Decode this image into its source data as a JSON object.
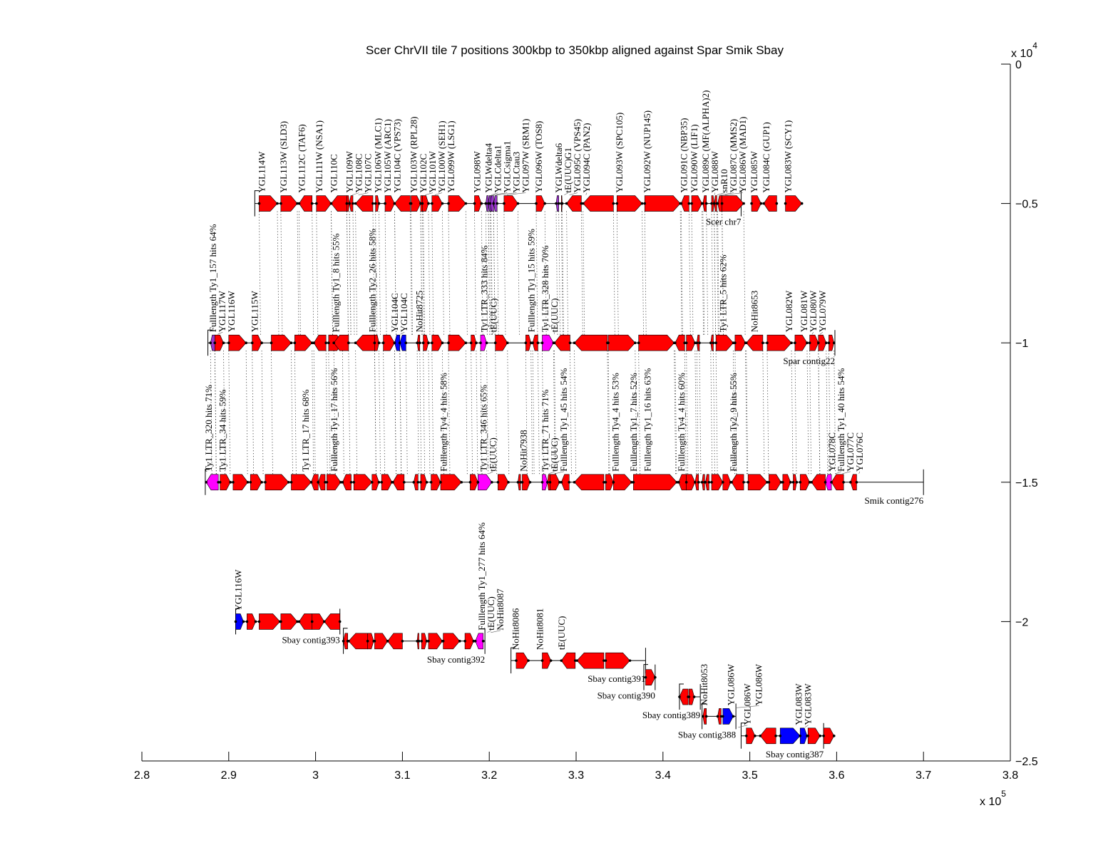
{
  "chart_data": {
    "type": "gene-alignment-map",
    "title": "Scer ChrVII tile 7 positions 300kbp to 350kbp aligned against Spar Smik Sbay",
    "xlabel": "",
    "ylabel": "",
    "xlim": [
      280000,
      380000
    ],
    "ylim": [
      -25000,
      0
    ],
    "x_ticks": [
      2.8,
      2.9,
      3.0,
      3.1,
      3.2,
      3.3,
      3.4,
      3.5,
      3.6,
      3.7,
      3.8
    ],
    "x_tick_labels": [
      "2.8",
      "2.9",
      "3",
      "3.1",
      "3.2",
      "3.3",
      "3.4",
      "3.5",
      "3.6",
      "3.7",
      "3.8"
    ],
    "x_multiplier": "x 10",
    "x_multiplier_exp": "5",
    "y_ticks": [
      0,
      -0.5,
      -1,
      -1.5,
      -2,
      -2.5
    ],
    "y_tick_labels": [
      "0",
      "−0.5",
      "−1",
      "−1.5",
      "−2",
      "−2.5"
    ],
    "y_multiplier": "x 10",
    "y_multiplier_exp": "4",
    "y_axis_side": "right",
    "grid": false,
    "colors": {
      "gene": "#ff0000",
      "transposon": "#ff00ff",
      "trna": "#9933cc",
      "inverted": "#0000ff",
      "other": "#00cc00"
    },
    "tracks": [
      {
        "name": "Scer chr7",
        "y": -5000,
        "range": [
          293000,
          349000
        ],
        "features": [
          {
            "s": 293500,
            "e": 295600,
            "dir": 1,
            "c": "gene",
            "label": "YGL114W"
          },
          {
            "s": 296000,
            "e": 297900,
            "dir": 1,
            "c": "gene",
            "label": "YGL113W (SLD3)"
          },
          {
            "s": 298100,
            "e": 299600,
            "dir": -1,
            "c": "gene",
            "label": "YGL112C (TAF6)"
          },
          {
            "s": 300100,
            "e": 301800,
            "dir": 1,
            "c": "gene",
            "label": "YGL111W (NSA1)"
          },
          {
            "s": 301800,
            "e": 303600,
            "dir": -1,
            "c": "gene",
            "label": "YGL110C"
          },
          {
            "s": 303600,
            "e": 303900,
            "dir": 1,
            "c": "gene",
            "label": "YGL109W"
          },
          {
            "s": 303900,
            "e": 304300,
            "dir": -1,
            "c": "gene",
            "label": "YGL108C"
          },
          {
            "s": 304600,
            "e": 306600,
            "dir": -1,
            "c": "gene",
            "label": "YGL107C"
          },
          {
            "s": 306900,
            "e": 307300,
            "dir": 1,
            "c": "gene",
            "label": "YGL106W (MLC1)"
          },
          {
            "s": 308000,
            "e": 309100,
            "dir": 1,
            "c": "gene",
            "label": "YGL105W (ARC1)"
          },
          {
            "s": 309100,
            "e": 310900,
            "dir": -1,
            "c": "gene",
            "label": "YGL104C (VPS73)"
          },
          {
            "s": 311000,
            "e": 312100,
            "dir": 1,
            "c": "gene",
            "label": "YGL103W (RPL28)"
          },
          {
            "s": 312100,
            "e": 312400,
            "dir": 1,
            "c": "gene",
            "label": "YGL102C"
          },
          {
            "s": 312300,
            "e": 313000,
            "dir": 1,
            "c": "gene",
            "label": "YGL101W"
          },
          {
            "s": 313400,
            "e": 314600,
            "dir": 1,
            "c": "gene",
            "label": "YGL100W (SEH1)"
          },
          {
            "s": 315300,
            "e": 317300,
            "dir": 1,
            "c": "gene",
            "label": "YGL099W (LSG1)"
          },
          {
            "s": 318300,
            "e": 319100,
            "dir": 1,
            "c": "gene",
            "label": "YGL098W"
          },
          {
            "s": 319600,
            "e": 319900,
            "dir": -1,
            "c": "trna",
            "label": "YGLWdelta4"
          },
          {
            "s": 319900,
            "e": 320200,
            "dir": -1,
            "c": "trna",
            "label": "YGLCdelta1"
          },
          {
            "s": 320100,
            "e": 320500,
            "dir": -1,
            "c": "trna",
            "label": "YGLCsigma1"
          },
          {
            "s": 320500,
            "e": 320900,
            "dir": -1,
            "c": "trna",
            "label": "YGLCtau3"
          },
          {
            "s": 321700,
            "e": 323300,
            "dir": 1,
            "c": "gene",
            "label": "YGL097W (SRM1)"
          },
          {
            "s": 325400,
            "e": 326400,
            "dir": 1,
            "c": "gene",
            "label": "YGL096W (TOS8)"
          },
          {
            "s": 327700,
            "e": 328000,
            "dir": -1,
            "c": "trna",
            "label": "YGLWdelta6"
          },
          {
            "s": 328300,
            "e": 328400,
            "dir": 1,
            "c": "gene",
            "label": "tE(UUC)G1"
          },
          {
            "s": 328900,
            "e": 330600,
            "dir": -1,
            "c": "gene",
            "label": "YGL095C (VPS45)"
          },
          {
            "s": 330800,
            "e": 334300,
            "dir": -1,
            "c": "gene",
            "label": "YGL094C (PAN2)"
          },
          {
            "s": 334700,
            "e": 337600,
            "dir": 1,
            "c": "gene",
            "label": "YGL093W (SPC105)"
          },
          {
            "s": 337900,
            "e": 342000,
            "dir": 1,
            "c": "gene",
            "label": "YGL092W (NUP145)"
          },
          {
            "s": 342100,
            "e": 343000,
            "dir": -1,
            "c": "gene",
            "label": "YGL091C (NBP35)"
          },
          {
            "s": 343300,
            "e": 344500,
            "dir": 1,
            "c": "gene",
            "label": "YGL090W (LIF1)"
          },
          {
            "s": 344600,
            "e": 345000,
            "dir": -1,
            "c": "gene",
            "label": "YGL089C (MF(ALPHA)2)"
          },
          {
            "s": 345600,
            "e": 345900,
            "dir": 1,
            "c": "gene",
            "label": "YGL088W"
          },
          {
            "s": 345900,
            "e": 346200,
            "dir": -1,
            "c": "gene",
            "label": "snR10"
          },
          {
            "s": 346300,
            "e": 346800,
            "dir": -1,
            "c": "gene",
            "label": "YGL087C (MMS2)"
          },
          {
            "s": 346800,
            "e": 349300,
            "dir": 1,
            "c": "gene",
            "label": "YGL086W (MAD1)"
          }
        ]
      },
      {
        "name": "Spar contig22",
        "y": -10000,
        "range": [
          287600,
          359800
        ],
        "features": [
          {
            "s": 287900,
            "e": 288400,
            "dir": -1,
            "c": "trna",
            "label": "Fulllength Ty1_157 hits 64%"
          },
          {
            "s": 288400,
            "e": 289400,
            "dir": 1,
            "c": "gene",
            "label": "YGL117W"
          },
          {
            "s": 290000,
            "e": 292000,
            "dir": 1,
            "c": "gene",
            "label": "YGL116W"
          },
          {
            "s": 292700,
            "e": 293800,
            "dir": 1,
            "c": "gene",
            "label": "YGL115W"
          }
        ]
      },
      {
        "name": "Smik contig276",
        "y": -15000,
        "range": [
          287300,
          370000
        ],
        "features": [
          {
            "s": 287400,
            "e": 288800,
            "dir": -1,
            "c": "transposon",
            "label": "Ty1 LTR_320 hits 71%"
          },
          {
            "s": 289000,
            "e": 290200,
            "dir": 1,
            "c": "gene",
            "label": "Ty1 LTR_34 hits 59%"
          }
        ]
      },
      {
        "name": "Sbay contig393",
        "y": -20000,
        "range": [
          290800,
          302800
        ],
        "features": [
          {
            "s": 290800,
            "e": 291700,
            "dir": 1,
            "c": "inverted",
            "label": "YGL116W"
          }
        ]
      },
      {
        "name": "Sbay contig392",
        "y": -20700,
        "range": [
          303200,
          319500
        ],
        "features": []
      },
      {
        "name": "Sbay contig391",
        "y": -21400,
        "range": [
          322500,
          338000
        ],
        "features": []
      },
      {
        "name": "Sbay contig390",
        "y": -22000,
        "range": [
          337800,
          339100
        ],
        "features": []
      },
      {
        "name": "Sbay contig389",
        "y": -22700,
        "range": [
          341900,
          344300
        ],
        "features": []
      },
      {
        "name": "Sbay contig388",
        "y": -23400,
        "range": [
          344500,
          348400
        ],
        "features": []
      },
      {
        "name": "Sbay contig387",
        "y": -24100,
        "range": [
          349000,
          358500
        ],
        "features": []
      }
    ],
    "extra_labels": {
      "spar": [
        "Fulllength Ty1_8 hits 55%",
        "Fulllength Ty2_26 hits 58%",
        "YGL104C",
        "YGL104C",
        "NoHit8725",
        "Ty1 LTR_333 hits 84%",
        "tE(UUC)",
        "Fulllength Ty1_15 hits 59%",
        "Ty1 LTR_328 hits 70%",
        "tE(UUC)",
        "Ty1 LTR_5 hits 62%",
        "NoHit8653",
        "YGL082W",
        "YGL081W",
        "YGL080W",
        "YGL079W"
      ],
      "smik": [
        "Ty1 LTR_17 hits 68%",
        "Fulllength Ty1_17 hits 56%",
        "Fulllength Ty4_4 hits 58%",
        "Ty1 LTR_346 hits 65%",
        "tE(UUC)",
        "NoHit7938",
        "Ty1 LTR_71 hits 71%",
        "tE(UUC)",
        "Fulllength Ty1_45 hits 54%",
        "Fulllength Ty4_4 hits 53%",
        "Fulllength Ty1_7 hits 52%",
        "Fulllength Ty1_16 hits 63%",
        "Fulllength Ty4_4 hits 60%",
        "Fulllength Ty2_9 hits 55%",
        "YGL078C",
        "Fulllength Ty1_40 hits 54%",
        "YGL077C",
        "YGL076C"
      ],
      "sbay": [
        "Fulllength Ty1_277 hits 64%",
        "tE(UUC)",
        "NoHit8087",
        "NoHit8086",
        "NoHit8081",
        "tE(UUC)",
        "NoHit8053",
        "YGL086W",
        "YGL086W",
        "YGL086W",
        "YGL083W",
        "YGL083W"
      ],
      "scer_tail": [
        "YGL085W",
        "YGL084C (GUP1)",
        "YGL083W (SCY1)"
      ]
    }
  }
}
